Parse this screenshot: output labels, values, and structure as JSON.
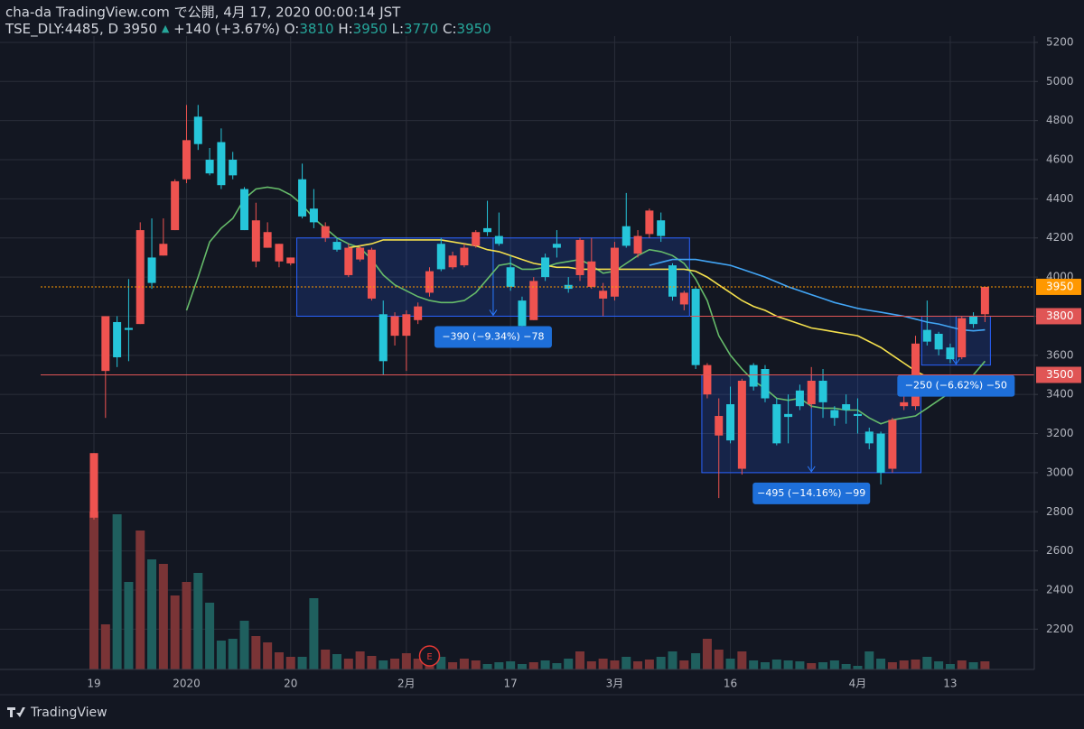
{
  "header": {
    "line1": "cha-da TradingView.com で公開, 4月 17, 2020 00:00:14 JST",
    "symbol": "TSE_DLY:4485, D",
    "price": 3950,
    "change": "+140 (+3.67%)",
    "o_label": "O:",
    "o": 3810,
    "h_label": "H:",
    "h": 3950,
    "l_label": "L:",
    "l": 3770,
    "c_label": "C:",
    "c": 3950
  },
  "footer": {
    "brand": "TradingView"
  },
  "chart_data": {
    "type": "candlestick",
    "categories": [
      "19",
      null,
      null,
      null,
      null,
      null,
      null,
      null,
      "2020",
      null,
      null,
      null,
      null,
      null,
      null,
      null,
      null,
      "20",
      null,
      null,
      null,
      null,
      null,
      null,
      null,
      null,
      null,
      "2月",
      null,
      null,
      null,
      null,
      null,
      null,
      null,
      null,
      "17",
      null,
      null,
      null,
      null,
      null,
      null,
      null,
      null,
      "3月",
      null,
      null,
      null,
      null,
      null,
      null,
      null,
      null,
      null,
      "16",
      null,
      null,
      null,
      null,
      null,
      null,
      null,
      null,
      null,
      null,
      "4月",
      null,
      null,
      null,
      null,
      null,
      null,
      null,
      "13",
      null,
      null,
      null
    ],
    "open": [
      2770,
      3520,
      3770,
      3740,
      3760,
      4100,
      4110,
      4240,
      4500,
      4820,
      4600,
      4690,
      4600,
      4450,
      4080,
      4150,
      4080,
      4070,
      4500,
      4350,
      4200,
      4180,
      4010,
      4090,
      3890,
      3810,
      3700,
      3700,
      3780,
      3920,
      4170,
      4050,
      4060,
      4160,
      4250,
      4210,
      4050,
      3880,
      3780,
      4100,
      4170,
      3960,
      4010,
      3950,
      3890,
      3900,
      4260,
      4120,
      4220,
      4290,
      4060,
      3860,
      3940,
      3400,
      3190,
      3350,
      3020,
      3550,
      3530,
      3350,
      3300,
      3420,
      3350,
      3470,
      3320,
      3350,
      3300,
      3210,
      3200,
      3020,
      3340,
      3340,
      3730,
      3710,
      3640,
      3590,
      3800,
      3810
    ],
    "high": [
      3100,
      3800,
      3800,
      3990,
      4280,
      4300,
      4300,
      4500,
      4880,
      4880,
      4660,
      4760,
      4640,
      4460,
      4380,
      4280,
      4170,
      4100,
      4580,
      4450,
      4280,
      4200,
      4170,
      4160,
      4150,
      3880,
      3820,
      3830,
      3870,
      4050,
      4200,
      4130,
      4170,
      4240,
      4390,
      4330,
      4110,
      3900,
      4000,
      4120,
      4240,
      4000,
      4200,
      4200,
      3970,
      4180,
      4430,
      4240,
      4350,
      4330,
      4070,
      3930,
      3950,
      3560,
      3380,
      3440,
      3480,
      3560,
      3550,
      3380,
      3400,
      3450,
      3540,
      3530,
      3340,
      3400,
      3380,
      3230,
      3210,
      3280,
      3420,
      3700,
      3880,
      3720,
      3660,
      3800,
      3820,
      3950
    ],
    "low": [
      2760,
      3280,
      3540,
      3570,
      3760,
      3940,
      4110,
      4240,
      4480,
      4650,
      4520,
      4450,
      4500,
      4240,
      4050,
      4150,
      4050,
      4060,
      4300,
      4250,
      4180,
      4130,
      4000,
      4080,
      3880,
      3500,
      3650,
      3520,
      3760,
      3900,
      4030,
      4040,
      4050,
      4150,
      4210,
      4160,
      3930,
      3740,
      3780,
      3980,
      4100,
      3920,
      3980,
      3940,
      3800,
      3880,
      4150,
      4100,
      4200,
      4180,
      3880,
      3830,
      3530,
      3380,
      2870,
      3150,
      2990,
      3420,
      3360,
      3140,
      3150,
      3320,
      3330,
      3280,
      3240,
      3250,
      3200,
      3120,
      2940,
      3000,
      3320,
      3320,
      3650,
      3600,
      3560,
      3580,
      3740,
      3770
    ],
    "close": [
      3100,
      3800,
      3590,
      3730,
      4240,
      3970,
      4170,
      4490,
      4700,
      4680,
      4530,
      4470,
      4520,
      4240,
      4290,
      4230,
      4170,
      4100,
      4310,
      4280,
      4260,
      4140,
      4150,
      4150,
      4140,
      3570,
      3800,
      3810,
      3850,
      4030,
      4040,
      4110,
      4150,
      4230,
      4230,
      4170,
      3950,
      3750,
      3980,
      4000,
      4150,
      3940,
      4190,
      4080,
      3930,
      4150,
      4160,
      4210,
      4340,
      4210,
      3900,
      3920,
      3550,
      3550,
      3290,
      3165,
      3470,
      3440,
      3380,
      3150,
      3285,
      3340,
      3470,
      3360,
      3280,
      3320,
      3290,
      3150,
      3000,
      3270,
      3360,
      3660,
      3670,
      3630,
      3580,
      3790,
      3760,
      3950
    ],
    "volume": [
      175,
      50,
      172,
      97,
      154,
      122,
      117,
      82,
      97,
      107,
      74,
      32,
      34,
      54,
      37,
      30,
      19,
      14,
      14,
      79,
      22,
      17,
      12,
      20,
      15,
      10,
      12,
      18,
      12,
      9,
      14,
      8,
      12,
      10,
      6,
      8,
      9,
      6,
      8,
      10,
      7,
      12,
      20,
      9,
      12,
      10,
      14,
      9,
      11,
      14,
      20,
      10,
      18,
      34,
      22,
      12,
      20,
      10,
      8,
      11,
      10,
      9,
      7,
      8,
      10,
      6,
      4,
      20,
      12,
      8,
      10,
      11,
      14,
      9,
      6,
      10,
      8,
      9
    ],
    "up_color": "#ef5350",
    "down_color": "#26c6da",
    "volume_up_color": "#7a3436",
    "volume_down_color": "#1f5f5e",
    "lines": [
      {
        "color": "#66bb6a",
        "values": [
          null,
          null,
          null,
          null,
          null,
          null,
          null,
          null,
          3830,
          4000,
          4180,
          4250,
          4300,
          4400,
          4450,
          4460,
          4450,
          4420,
          4370,
          4300,
          4250,
          4200,
          4170,
          4150,
          4090,
          4010,
          3960,
          3930,
          3900,
          3880,
          3870,
          3870,
          3880,
          3920,
          3990,
          4060,
          4070,
          4040,
          4040,
          4050,
          4070,
          4080,
          4090,
          4060,
          4020,
          4030,
          4070,
          4110,
          4140,
          4130,
          4110,
          4070,
          3990,
          3880,
          3700,
          3600,
          3530,
          3470,
          3430,
          3380,
          3370,
          3380,
          3340,
          3330,
          3330,
          3320,
          3320,
          3280,
          3250,
          3270,
          3280,
          3290,
          3330,
          3370,
          3410,
          3450,
          3500,
          3570
        ]
      },
      {
        "color": "#f4e04d",
        "values": [
          null,
          null,
          null,
          null,
          null,
          null,
          null,
          null,
          null,
          null,
          null,
          null,
          null,
          null,
          null,
          null,
          null,
          null,
          null,
          null,
          null,
          null,
          4150,
          4160,
          4170,
          4190,
          4190,
          4190,
          4190,
          4190,
          4190,
          4180,
          4170,
          4160,
          4140,
          4130,
          4110,
          4090,
          4070,
          4060,
          4050,
          4050,
          4040,
          4040,
          4040,
          4040,
          4040,
          4040,
          4040,
          4040,
          4040,
          4040,
          4030,
          4000,
          3960,
          3920,
          3880,
          3850,
          3830,
          3800,
          3780,
          3760,
          3740,
          3730,
          3720,
          3710,
          3700,
          3670,
          3640,
          3600,
          3560,
          3520,
          3490,
          null,
          null,
          null,
          null,
          null
        ]
      },
      {
        "color": "#42a5f5",
        "values": [
          null,
          null,
          null,
          null,
          null,
          null,
          null,
          null,
          null,
          null,
          null,
          null,
          null,
          null,
          null,
          null,
          null,
          null,
          null,
          null,
          null,
          null,
          null,
          null,
          null,
          null,
          null,
          null,
          null,
          null,
          null,
          null,
          null,
          null,
          null,
          null,
          null,
          null,
          null,
          null,
          null,
          null,
          null,
          null,
          null,
          null,
          null,
          null,
          4060,
          4075,
          4090,
          4090,
          4090,
          4080,
          4070,
          4060,
          4040,
          4020,
          4000,
          3975,
          3950,
          3930,
          3910,
          3890,
          3870,
          3855,
          3840,
          3830,
          3820,
          3810,
          3800,
          3785,
          3770,
          3760,
          3745,
          3730,
          3725,
          3730
        ]
      }
    ],
    "hlines": [
      {
        "value": 3500,
        "color": "#e05555",
        "dashed": false
      },
      {
        "value": 3800,
        "color": "#e05555",
        "dashed": false,
        "start": 52
      },
      {
        "value": 3950,
        "color": "#ff9800",
        "dashed": true
      }
    ],
    "measures": [
      {
        "label": "−390 (−9.34%) −78",
        "top": 4200,
        "bottom": 3800,
        "start": 18,
        "end": 51
      },
      {
        "label": "−495 (−14.16%) −99",
        "top": 3500,
        "bottom": 3000,
        "start": 53,
        "end": 71
      },
      {
        "label": "−250 (−6.62%) −50",
        "top": 3800,
        "bottom": 3550,
        "start": 72,
        "end": 77
      }
    ],
    "event": {
      "label": "E",
      "index": 29
    },
    "ylim": [
      1994,
      5232
    ],
    "yticks": [
      2200,
      2400,
      2600,
      2800,
      3000,
      3200,
      3400,
      3600,
      3800,
      4000,
      4200,
      4400,
      4600,
      4800,
      5000,
      5200
    ],
    "grid": true
  }
}
